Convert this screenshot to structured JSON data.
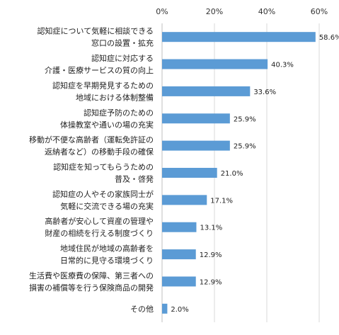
{
  "chart_data": {
    "type": "bar",
    "orientation": "horizontal",
    "title": "",
    "xlabel": "",
    "ylabel": "",
    "xlim": [
      0,
      60
    ],
    "ticks": [
      "0%",
      "20%",
      "40%",
      "60%"
    ],
    "grid": true,
    "legend": "none",
    "bar_color": "#5b9bd5",
    "categories": [
      [
        "認知症について気軽に相談できる",
        "窓口の設置・拡充"
      ],
      [
        "認知症に対応する",
        "介護・医療サービスの質の向上"
      ],
      [
        "認知症を早期発見するための",
        "地域における体制整備"
      ],
      [
        "認知症予防のための",
        "体操教室や通いの場の充実"
      ],
      [
        "移動が不便な高齢者（運転免許証の",
        "返納者など）の移動手段の確保"
      ],
      [
        "認知症を知ってもらうための",
        "普及・啓発"
      ],
      [
        "認知症の人やその家族同士が",
        "気軽に交流できる場の充実"
      ],
      [
        "高齢者が安心して資産の管理や",
        "財産の相続を行える制度づくり"
      ],
      [
        "地域住民が地域の高齢者を",
        "日常的に見守る環境づくり"
      ],
      [
        "生活費や医療費の保障、第三者への",
        "損害の補償等を行う保険商品の開発"
      ],
      [
        "その他"
      ]
    ],
    "values": [
      58.6,
      40.3,
      33.6,
      25.9,
      25.9,
      21.0,
      17.1,
      13.1,
      12.9,
      12.9,
      2.0
    ],
    "value_labels": [
      "58.6%",
      "40.3%",
      "33.6%",
      "25.9%",
      "25.9%",
      "21.0%",
      "17.1%",
      "13.1%",
      "12.9%",
      "12.9%",
      "2.0%"
    ]
  }
}
